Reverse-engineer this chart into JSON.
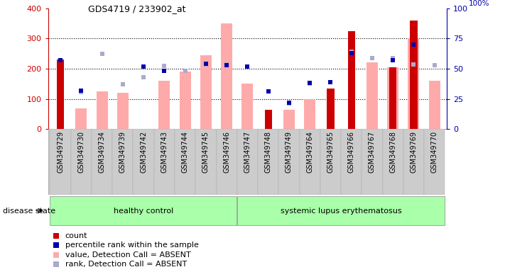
{
  "title": "GDS4719 / 233902_at",
  "samples": [
    "GSM349729",
    "GSM349730",
    "GSM349734",
    "GSM349739",
    "GSM349742",
    "GSM349743",
    "GSM349744",
    "GSM349745",
    "GSM349746",
    "GSM349747",
    "GSM349748",
    "GSM349749",
    "GSM349764",
    "GSM349765",
    "GSM349766",
    "GSM349767",
    "GSM349768",
    "GSM349769",
    "GSM349770"
  ],
  "n_healthy": 9,
  "n_sle": 10,
  "count": [
    230,
    0,
    0,
    0,
    0,
    0,
    0,
    0,
    0,
    0,
    65,
    0,
    0,
    135,
    325,
    0,
    205,
    360,
    0
  ],
  "percentile": [
    57,
    32,
    0,
    0,
    52,
    48,
    0,
    54,
    53,
    52,
    31,
    22,
    38,
    39,
    63,
    0,
    57,
    70,
    0
  ],
  "value_absent": [
    0,
    68,
    125,
    120,
    0,
    160,
    190,
    245,
    350,
    150,
    0,
    63,
    100,
    0,
    0,
    220,
    205,
    300,
    160
  ],
  "rank_absent": [
    0,
    122,
    248,
    148,
    172,
    210,
    192,
    215,
    215,
    208,
    0,
    85,
    150,
    155,
    255,
    235,
    235,
    215,
    212
  ],
  "ylim_left": [
    0,
    400
  ],
  "ylim_right": [
    0,
    100
  ],
  "yticks_left": [
    0,
    100,
    200,
    300,
    400
  ],
  "yticks_right": [
    0,
    25,
    50,
    75,
    100
  ],
  "color_count": "#cc0000",
  "color_percentile": "#0000aa",
  "color_value_absent": "#ffaaaa",
  "color_rank_absent": "#aaaacc",
  "bg_color": "#ffffff",
  "group_color": "#aaffaa",
  "group_edge": "#888888",
  "tick_bg": "#cccccc",
  "disease_state_label": "disease state",
  "group_labels": [
    "healthy control",
    "systemic lupus erythematosus"
  ],
  "legend_items": [
    "count",
    "percentile rank within the sample",
    "value, Detection Call = ABSENT",
    "rank, Detection Call = ABSENT"
  ],
  "legend_colors": [
    "#cc0000",
    "#0000aa",
    "#ffaaaa",
    "#aaaacc"
  ]
}
